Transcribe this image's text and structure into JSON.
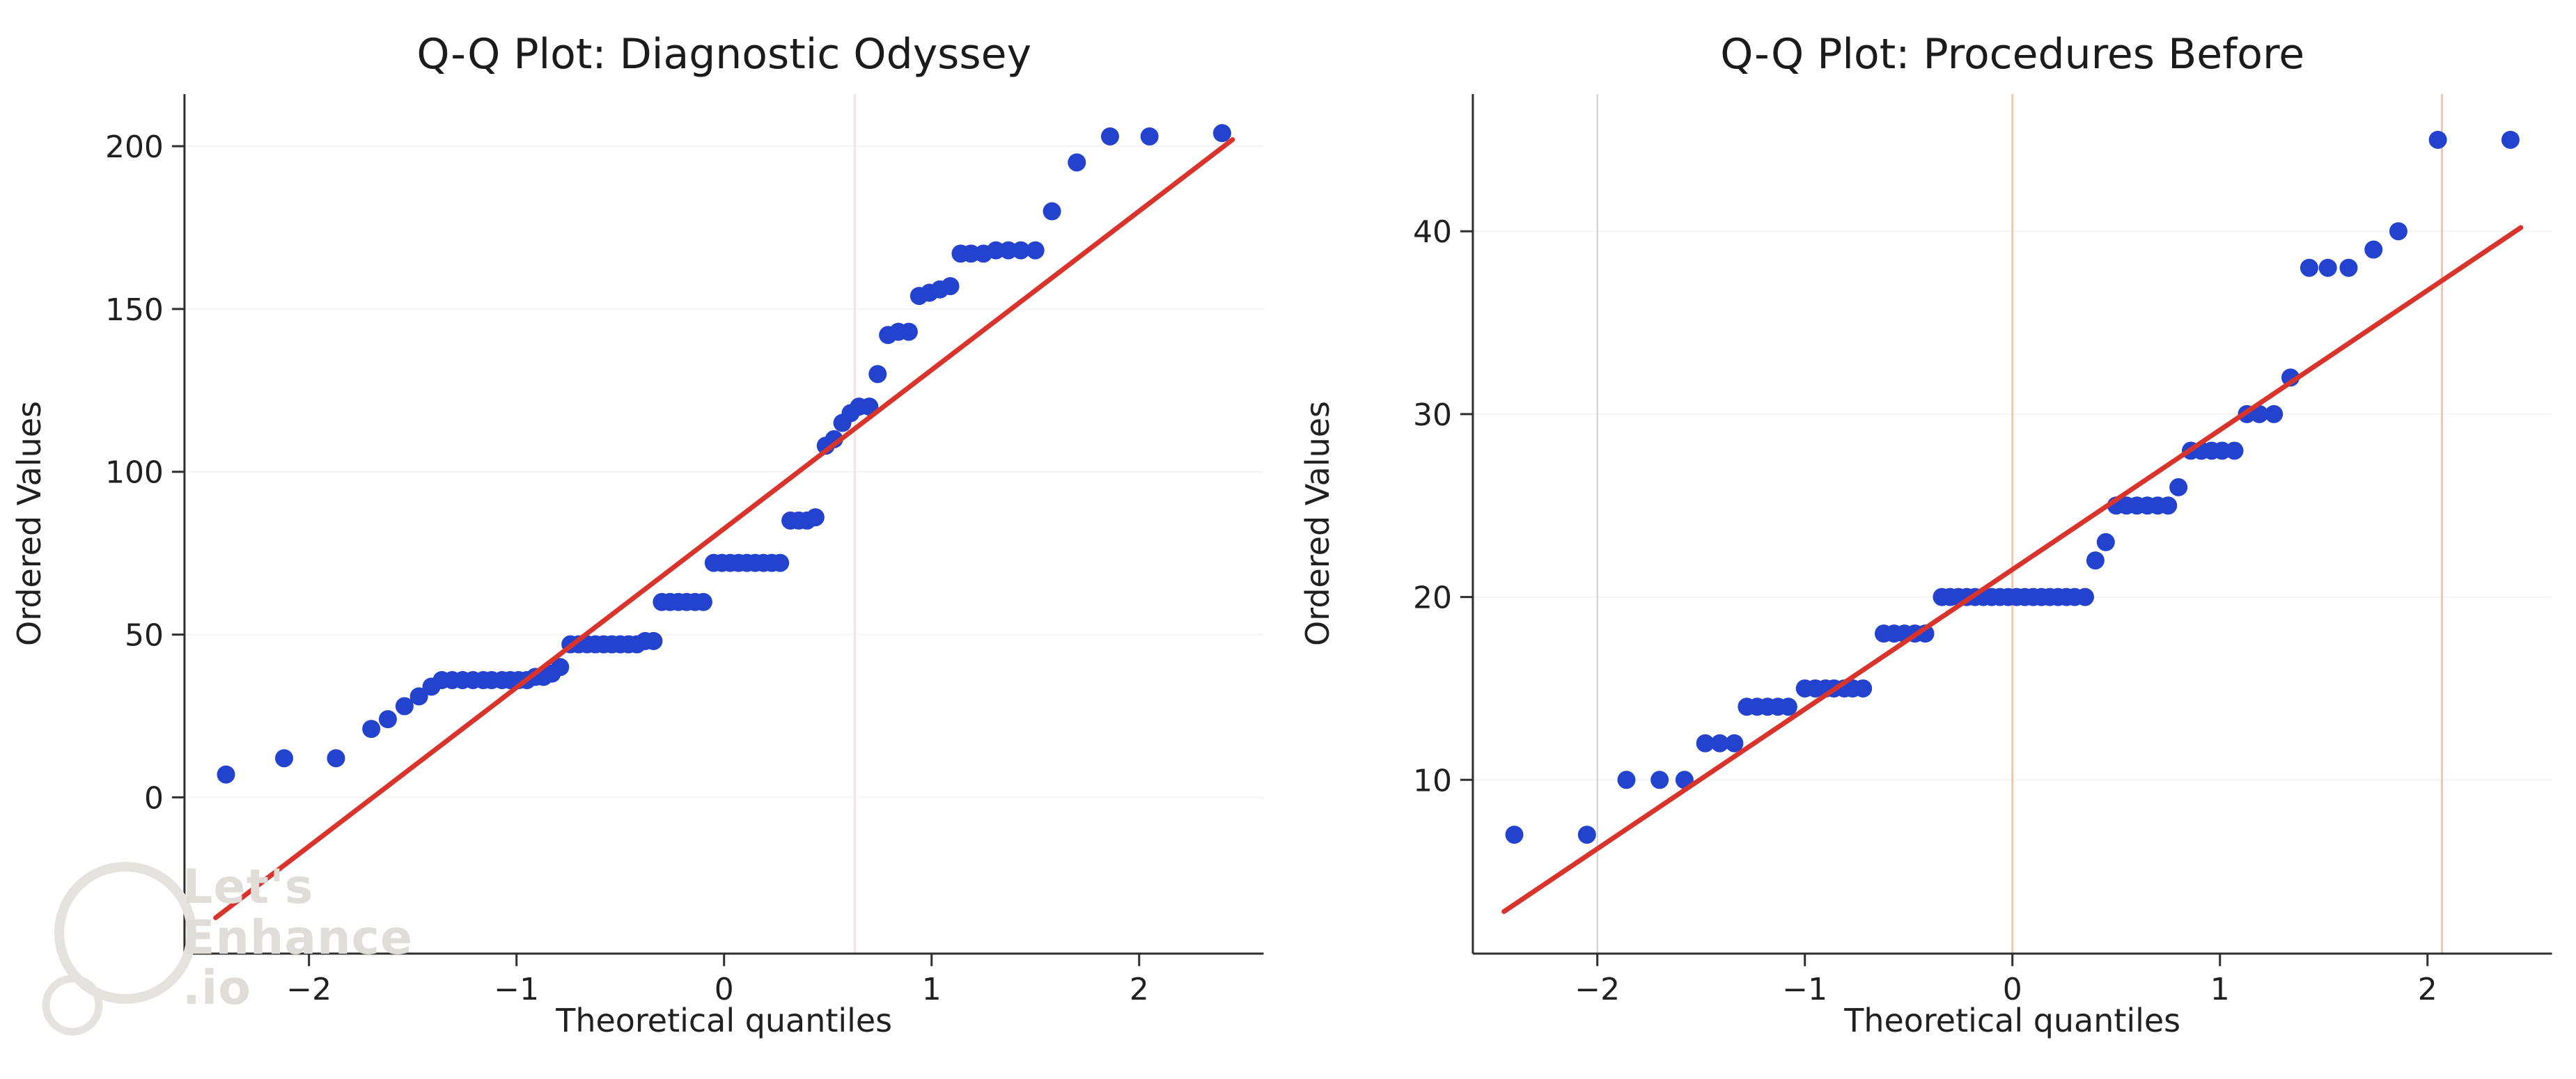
{
  "figure": {
    "background": "#ffffff"
  },
  "watermark": {
    "line1": "Let's",
    "line2": "Enhance",
    "line3": ".io",
    "color": "#e0ddd8"
  },
  "chart_data": [
    {
      "type": "scatter",
      "title": "Q-Q Plot: Diagnostic Odyssey",
      "xlabel": "Theoretical quantiles",
      "ylabel": "Ordered Values",
      "xlim": [
        -2.6,
        2.6
      ],
      "ylim": [
        -48,
        216
      ],
      "xticks": [
        -2,
        -1,
        0,
        1,
        2
      ],
      "yticks": [
        0,
        50,
        100,
        150,
        200
      ],
      "point_color": "#2343cf",
      "line_color": "#d9342b",
      "grid": {
        "h_color": "#f6f4f2",
        "v_special": [
          {
            "x": 0.63,
            "color": "#f8e3dc",
            "width": 3
          }
        ]
      },
      "fit_line": [
        [
          -2.45,
          -37
        ],
        [
          2.45,
          202
        ]
      ],
      "points": [
        [
          -2.4,
          7
        ],
        [
          -2.12,
          12
        ],
        [
          -1.87,
          12
        ],
        [
          -1.7,
          21
        ],
        [
          -1.62,
          24
        ],
        [
          -1.54,
          28
        ],
        [
          -1.47,
          31
        ],
        [
          -1.41,
          34
        ],
        [
          -1.36,
          36
        ],
        [
          -1.31,
          36
        ],
        [
          -1.26,
          36
        ],
        [
          -1.21,
          36
        ],
        [
          -1.16,
          36
        ],
        [
          -1.12,
          36
        ],
        [
          -1.07,
          36
        ],
        [
          -1.03,
          36
        ],
        [
          -0.99,
          36
        ],
        [
          -0.95,
          36
        ],
        [
          -0.91,
          37
        ],
        [
          -0.87,
          37
        ],
        [
          -0.83,
          38
        ],
        [
          -0.79,
          40
        ],
        [
          -0.74,
          47
        ],
        [
          -0.7,
          47
        ],
        [
          -0.66,
          47
        ],
        [
          -0.62,
          47
        ],
        [
          -0.58,
          47
        ],
        [
          -0.54,
          47
        ],
        [
          -0.5,
          47
        ],
        [
          -0.46,
          47
        ],
        [
          -0.42,
          47
        ],
        [
          -0.38,
          48
        ],
        [
          -0.34,
          48
        ],
        [
          -0.3,
          60
        ],
        [
          -0.26,
          60
        ],
        [
          -0.22,
          60
        ],
        [
          -0.18,
          60
        ],
        [
          -0.14,
          60
        ],
        [
          -0.1,
          60
        ],
        [
          -0.05,
          72
        ],
        [
          -0.01,
          72
        ],
        [
          0.03,
          72
        ],
        [
          0.07,
          72
        ],
        [
          0.11,
          72
        ],
        [
          0.15,
          72
        ],
        [
          0.19,
          72
        ],
        [
          0.23,
          72
        ],
        [
          0.27,
          72
        ],
        [
          0.32,
          85
        ],
        [
          0.36,
          85
        ],
        [
          0.4,
          85
        ],
        [
          0.44,
          86
        ],
        [
          0.49,
          108
        ],
        [
          0.53,
          110
        ],
        [
          0.57,
          115
        ],
        [
          0.61,
          118
        ],
        [
          0.65,
          120
        ],
        [
          0.7,
          120
        ],
        [
          0.74,
          130
        ],
        [
          0.79,
          142
        ],
        [
          0.84,
          143
        ],
        [
          0.89,
          143
        ],
        [
          0.94,
          154
        ],
        [
          0.99,
          155
        ],
        [
          1.04,
          156
        ],
        [
          1.09,
          157
        ],
        [
          1.14,
          167
        ],
        [
          1.19,
          167
        ],
        [
          1.25,
          167
        ],
        [
          1.31,
          168
        ],
        [
          1.37,
          168
        ],
        [
          1.43,
          168
        ],
        [
          1.5,
          168
        ],
        [
          1.58,
          180
        ],
        [
          1.7,
          195
        ],
        [
          1.86,
          203
        ],
        [
          2.05,
          203
        ],
        [
          2.4,
          204
        ]
      ]
    },
    {
      "type": "scatter",
      "title": "Q-Q Plot: Procedures Before",
      "xlabel": "Theoretical quantiles",
      "ylabel": "Ordered Values",
      "xlim": [
        -2.6,
        2.6
      ],
      "ylim": [
        0.5,
        47.5
      ],
      "xticks": [
        -2,
        -1,
        0,
        1,
        2
      ],
      "yticks": [
        10,
        20,
        30,
        40
      ],
      "point_color": "#2343cf",
      "line_color": "#d9342b",
      "grid": {
        "h_color": "#f6f4f2",
        "v_special": [
          {
            "x": -2.0,
            "color": "#cfcfcf",
            "width": 2
          },
          {
            "x": 0.0,
            "color": "#f3c4b4",
            "width": 3
          },
          {
            "x": 2.07,
            "color": "#f3c4b4",
            "width": 3
          }
        ]
      },
      "fit_line": [
        [
          -2.45,
          2.8
        ],
        [
          2.45,
          40.2
        ]
      ],
      "points": [
        [
          -2.4,
          7
        ],
        [
          -2.05,
          7
        ],
        [
          -1.86,
          10
        ],
        [
          -1.7,
          10
        ],
        [
          -1.58,
          10
        ],
        [
          -1.48,
          12
        ],
        [
          -1.41,
          12
        ],
        [
          -1.34,
          12
        ],
        [
          -1.28,
          14
        ],
        [
          -1.23,
          14
        ],
        [
          -1.18,
          14
        ],
        [
          -1.13,
          14
        ],
        [
          -1.08,
          14
        ],
        [
          -1.0,
          15
        ],
        [
          -0.95,
          15
        ],
        [
          -0.9,
          15
        ],
        [
          -0.86,
          15
        ],
        [
          -0.81,
          15
        ],
        [
          -0.77,
          15
        ],
        [
          -0.72,
          15
        ],
        [
          -0.62,
          18
        ],
        [
          -0.57,
          18
        ],
        [
          -0.52,
          18
        ],
        [
          -0.47,
          18
        ],
        [
          -0.42,
          18
        ],
        [
          -0.34,
          20
        ],
        [
          -0.3,
          20
        ],
        [
          -0.26,
          20
        ],
        [
          -0.22,
          20
        ],
        [
          -0.18,
          20
        ],
        [
          -0.14,
          20
        ],
        [
          -0.1,
          20
        ],
        [
          -0.06,
          20
        ],
        [
          -0.02,
          20
        ],
        [
          0.02,
          20
        ],
        [
          0.06,
          20
        ],
        [
          0.1,
          20
        ],
        [
          0.14,
          20
        ],
        [
          0.18,
          20
        ],
        [
          0.22,
          20
        ],
        [
          0.26,
          20
        ],
        [
          0.3,
          20
        ],
        [
          0.35,
          20
        ],
        [
          0.4,
          22
        ],
        [
          0.45,
          23
        ],
        [
          0.5,
          25
        ],
        [
          0.55,
          25
        ],
        [
          0.6,
          25
        ],
        [
          0.65,
          25
        ],
        [
          0.7,
          25
        ],
        [
          0.75,
          25
        ],
        [
          0.8,
          26
        ],
        [
          0.86,
          28
        ],
        [
          0.91,
          28
        ],
        [
          0.96,
          28
        ],
        [
          1.01,
          28
        ],
        [
          1.07,
          28
        ],
        [
          1.13,
          30
        ],
        [
          1.19,
          30
        ],
        [
          1.26,
          30
        ],
        [
          1.34,
          32
        ],
        [
          1.43,
          38
        ],
        [
          1.52,
          38
        ],
        [
          1.62,
          38
        ],
        [
          1.74,
          39
        ],
        [
          1.86,
          40
        ],
        [
          2.05,
          45
        ],
        [
          2.4,
          45
        ]
      ]
    }
  ]
}
